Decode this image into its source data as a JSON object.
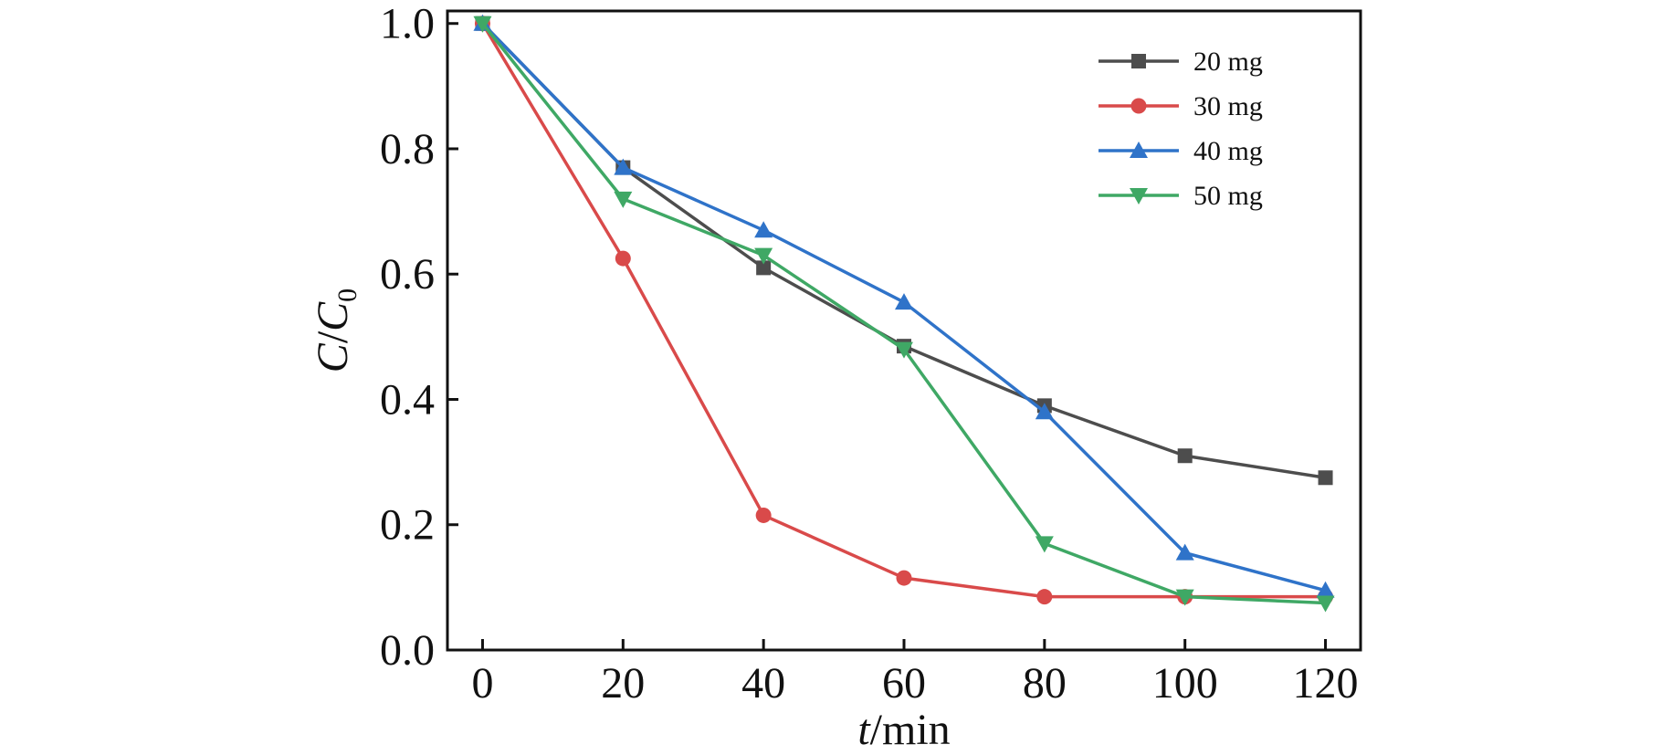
{
  "chart_data": {
    "type": "line",
    "x": [
      0,
      20,
      40,
      60,
      80,
      100,
      120
    ],
    "xlabel": {
      "var": "t",
      "sep": "/",
      "unit": "min"
    },
    "ylabel": {
      "var": "C",
      "sep": "/",
      "den": "C",
      "sub": "0"
    },
    "xlim": [
      -5,
      125
    ],
    "ylim": [
      0.0,
      1.02
    ],
    "xticks": [
      "0",
      "20",
      "40",
      "60",
      "80",
      "100",
      "120"
    ],
    "yticks": [
      "0.0",
      "0.2",
      "0.4",
      "0.6",
      "0.8",
      "1.0"
    ],
    "grid": false,
    "legend_position": "top-right",
    "series": [
      {
        "name": "20 mg",
        "color": "#4d4d4d",
        "marker": "square",
        "values": [
          1.0,
          0.77,
          0.61,
          0.485,
          0.39,
          0.31,
          0.275
        ]
      },
      {
        "name": "30 mg",
        "color": "#d94a4a",
        "marker": "circle",
        "values": [
          1.0,
          0.625,
          0.215,
          0.115,
          0.085,
          0.085,
          0.085
        ]
      },
      {
        "name": "40 mg",
        "color": "#2f73c9",
        "marker": "triangle-up",
        "values": [
          1.0,
          0.77,
          0.67,
          0.555,
          0.38,
          0.155,
          0.095
        ]
      },
      {
        "name": "50 mg",
        "color": "#3fa865",
        "marker": "triangle-down",
        "values": [
          1.0,
          0.72,
          0.63,
          0.48,
          0.17,
          0.085,
          0.075
        ]
      }
    ]
  }
}
